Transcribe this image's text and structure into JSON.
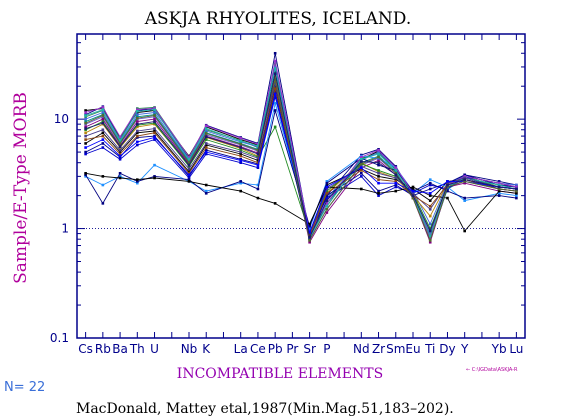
{
  "chart_data": {
    "type": "line",
    "title": "ASKJA RHYOLITES, ICELAND.",
    "xlabel": "INCOMPATIBLE ELEMENTS",
    "ylabel": "Sample/E-Type MORB",
    "y_scale": "log",
    "ylim": [
      0.1,
      60
    ],
    "y_ticks": [
      {
        "value": 0.1,
        "label": "0.1"
      },
      {
        "value": 1,
        "label": "1"
      },
      {
        "value": 10,
        "label": "10"
      }
    ],
    "reference_line": 1,
    "grid": false,
    "legend": "none",
    "categories": [
      "Cs",
      "Rb",
      "Ba",
      "Th",
      "U",
      "",
      "Nb",
      "K",
      "",
      "La",
      "Ce",
      "Pb",
      "Pr",
      "Sr",
      "P",
      "",
      "Nd",
      "Zr",
      "Sm",
      "Eu",
      "Ti",
      "Dy",
      "Y",
      "",
      "Yb",
      "Lu"
    ],
    "n_label": "N= 22",
    "file_label": "← C:\\IGData\\ASKJA-R",
    "citation": "MacDonald, Mattey etal,1987(Min.Mag.51,183–202).",
    "colors": {
      "axis": "#00008b",
      "title": "#000000",
      "ylabel": "#b0009c",
      "xlabel": "#9400b0",
      "n_label": "#3a6fd8",
      "file_label": "#b0009c"
    },
    "series": [
      {
        "color": "#000000",
        "values": [
          12.0,
          12.5,
          6.8,
          11.5,
          12.0,
          null,
          4.6,
          8.5,
          null,
          6.5,
          5.8,
          28.0,
          null,
          0.85,
          1.6,
          null,
          4.3,
          5.1,
          3.4,
          2.1,
          0.8,
          2.6,
          3.0,
          null,
          2.6,
          2.4
        ]
      },
      {
        "color": "#000080",
        "values": [
          11.0,
          13.0,
          6.5,
          12.0,
          12.5,
          null,
          4.4,
          8.8,
          null,
          6.8,
          6.0,
          40.0,
          null,
          0.9,
          2.0,
          null,
          4.7,
          5.3,
          3.7,
          2.0,
          0.85,
          2.5,
          3.1,
          null,
          2.7,
          2.5
        ]
      },
      {
        "color": "#2e8b57",
        "values": [
          10.5,
          12.0,
          6.6,
          12.5,
          12.8,
          null,
          4.5,
          8.0,
          null,
          6.4,
          5.5,
          32.0,
          null,
          0.8,
          1.8,
          null,
          4.4,
          4.9,
          3.5,
          2.0,
          0.9,
          2.4,
          2.9,
          null,
          2.5,
          2.4
        ]
      },
      {
        "color": "#4169e1",
        "values": [
          10.0,
          11.5,
          6.3,
          11.0,
          11.5,
          null,
          4.2,
          7.8,
          null,
          6.2,
          5.6,
          30.0,
          null,
          0.95,
          1.9,
          null,
          4.2,
          5.0,
          3.6,
          2.2,
          1.1,
          2.6,
          3.0,
          null,
          2.6,
          2.5
        ]
      },
      {
        "color": "#008b8b",
        "values": [
          9.5,
          11.0,
          6.1,
          10.5,
          11.0,
          null,
          4.1,
          7.5,
          null,
          6.0,
          5.3,
          26.0,
          null,
          0.85,
          1.7,
          null,
          4.0,
          4.6,
          3.3,
          1.9,
          0.8,
          2.3,
          2.8,
          null,
          2.4,
          2.3
        ]
      },
      {
        "color": "#6a5acd",
        "values": [
          9.0,
          10.5,
          5.9,
          10.0,
          10.5,
          null,
          4.0,
          7.2,
          null,
          5.8,
          5.1,
          24.0,
          null,
          0.8,
          1.5,
          null,
          3.8,
          4.4,
          3.2,
          2.0,
          0.9,
          2.5,
          2.7,
          null,
          2.3,
          2.2
        ]
      },
      {
        "color": "#800080",
        "values": [
          8.5,
          10.0,
          5.7,
          9.5,
          10.0,
          null,
          3.9,
          7.0,
          null,
          5.6,
          4.9,
          22.0,
          null,
          0.75,
          1.4,
          null,
          3.6,
          4.2,
          3.1,
          1.9,
          0.75,
          2.4,
          2.6,
          null,
          2.2,
          2.1
        ]
      },
      {
        "color": "#b8860b",
        "values": [
          7.5,
          9.0,
          5.5,
          8.5,
          9.0,
          null,
          3.8,
          6.8,
          null,
          5.4,
          4.6,
          25.0,
          null,
          0.9,
          2.1,
          null,
          4.0,
          3.3,
          2.9,
          2.0,
          1.3,
          2.6,
          2.9,
          null,
          2.5,
          2.4
        ]
      },
      {
        "color": "#228b22",
        "values": [
          8.0,
          9.5,
          5.6,
          8.8,
          9.2,
          null,
          3.7,
          6.5,
          null,
          5.2,
          4.5,
          8.5,
          null,
          0.9,
          2.2,
          null,
          3.9,
          3.4,
          3.0,
          2.1,
          1.0,
          2.5,
          3.0,
          null,
          2.4,
          2.3
        ]
      },
      {
        "color": "#000000",
        "values": [
          6.0,
          7.5,
          5.0,
          7.5,
          7.8,
          null,
          3.3,
          5.8,
          null,
          4.8,
          4.2,
          20.0,
          null,
          0.85,
          2.5,
          null,
          3.5,
          3.0,
          2.8,
          2.3,
          1.8,
          2.7,
          2.8,
          null,
          2.4,
          2.3
        ]
      },
      {
        "color": "#00008b",
        "values": [
          5.0,
          6.0,
          4.5,
          6.8,
          7.0,
          null,
          3.0,
          5.2,
          null,
          4.3,
          3.9,
          18.0,
          null,
          0.8,
          2.0,
          null,
          3.2,
          2.2,
          2.5,
          2.0,
          2.3,
          2.6,
          3.1,
          null,
          2.5,
          2.4
        ]
      },
      {
        "color": "#0000cd",
        "values": [
          4.8,
          5.5,
          4.3,
          5.8,
          6.5,
          null,
          2.9,
          4.8,
          null,
          4.0,
          3.6,
          16.0,
          null,
          0.9,
          1.9,
          null,
          3.0,
          2.0,
          2.4,
          2.1,
          2.5,
          2.3,
          3.0,
          null,
          2.3,
          2.2
        ]
      },
      {
        "color": "#1e90ff",
        "values": [
          3.0,
          2.5,
          3.0,
          2.6,
          3.8,
          null,
          2.7,
          2.2,
          null,
          2.6,
          2.5,
          14.0,
          null,
          1.0,
          2.7,
          null,
          4.6,
          4.4,
          3.6,
          2.1,
          2.8,
          2.4,
          1.8,
          null,
          2.1,
          2.0
        ]
      },
      {
        "color": "#000080",
        "values": [
          3.1,
          1.7,
          3.2,
          2.7,
          3.0,
          null,
          2.8,
          2.1,
          null,
          2.7,
          2.3,
          12.0,
          null,
          1.05,
          2.6,
          null,
          4.4,
          3.8,
          3.4,
          2.2,
          2.6,
          2.2,
          1.9,
          null,
          2.0,
          1.9
        ]
      },
      {
        "color": "#000000",
        "values": [
          3.2,
          3.0,
          2.9,
          2.8,
          2.9,
          null,
          2.7,
          2.5,
          null,
          2.2,
          1.9,
          1.7,
          null,
          1.1,
          2.4,
          null,
          2.3,
          2.1,
          2.2,
          2.4,
          2.0,
          1.9,
          0.95,
          null,
          2.2,
          2.1
        ]
      },
      {
        "color": "#9932cc",
        "values": [
          11.5,
          12.8,
          6.9,
          12.2,
          12.6,
          null,
          4.5,
          8.7,
          null,
          6.7,
          5.9,
          34.0,
          null,
          0.9,
          1.7,
          null,
          4.5,
          5.2,
          3.6,
          2.1,
          0.8,
          2.5,
          3.0,
          null,
          2.6,
          2.4
        ]
      },
      {
        "color": "#20b2aa",
        "values": [
          10.8,
          12.2,
          6.4,
          11.8,
          12.2,
          null,
          4.3,
          8.2,
          null,
          6.3,
          5.7,
          29.0,
          null,
          0.82,
          1.6,
          null,
          4.3,
          4.8,
          3.4,
          2.0,
          0.85,
          2.4,
          2.9,
          null,
          2.5,
          2.3
        ]
      },
      {
        "color": "#483d8b",
        "values": [
          7.0,
          8.0,
          5.2,
          7.8,
          8.2,
          null,
          3.5,
          6.0,
          null,
          5.0,
          4.4,
          21.0,
          null,
          0.88,
          2.3,
          null,
          3.7,
          3.2,
          2.9,
          2.1,
          1.5,
          2.6,
          2.9,
          null,
          2.4,
          2.3
        ]
      },
      {
        "color": "#8b4513",
        "values": [
          6.5,
          7.0,
          4.8,
          7.0,
          7.5,
          null,
          3.2,
          5.5,
          null,
          4.6,
          4.0,
          19.0,
          null,
          0.86,
          2.1,
          null,
          3.4,
          2.8,
          2.7,
          2.0,
          1.6,
          2.5,
          2.8,
          null,
          2.3,
          2.2
        ]
      },
      {
        "color": "#0000ff",
        "values": [
          5.5,
          6.5,
          4.6,
          6.2,
          6.8,
          null,
          3.1,
          5.0,
          null,
          4.2,
          3.8,
          17.0,
          null,
          0.92,
          2.4,
          null,
          3.6,
          2.6,
          2.6,
          2.2,
          2.1,
          2.7,
          2.7,
          null,
          2.4,
          2.3
        ]
      },
      {
        "color": "#556b2f",
        "values": [
          9.2,
          10.8,
          6.0,
          10.2,
          10.8,
          null,
          4.0,
          7.4,
          null,
          5.9,
          5.2,
          23.0,
          null,
          0.78,
          1.5,
          null,
          3.9,
          4.5,
          3.2,
          1.9,
          0.78,
          2.4,
          2.7,
          null,
          2.3,
          2.2
        ]
      },
      {
        "color": "#191970",
        "values": [
          8.2,
          9.2,
          5.6,
          9.0,
          9.5,
          null,
          3.8,
          6.9,
          null,
          5.5,
          4.8,
          26.0,
          null,
          0.83,
          1.8,
          null,
          4.1,
          4.0,
          3.1,
          2.0,
          0.95,
          2.5,
          2.8,
          null,
          2.4,
          2.3
        ]
      }
    ]
  }
}
